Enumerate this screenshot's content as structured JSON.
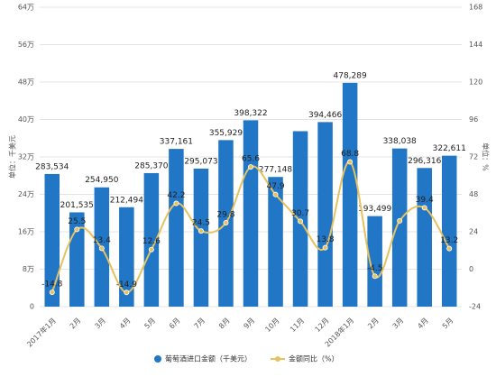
{
  "chart_data": {
    "type": "bar-line",
    "categories": [
      "2017年1月",
      "2月",
      "3月",
      "4月",
      "5月",
      "6月",
      "7月",
      "8月",
      "9月",
      "10月",
      "11月",
      "12月",
      "2018年1月",
      "2月",
      "3月",
      "4月",
      "5月"
    ],
    "series": [
      {
        "name": "葡萄酒进口金额（千美元）",
        "type": "bar",
        "color": "#2176c5",
        "values": [
          283534,
          201535,
          254950,
          212494,
          285370,
          337161,
          295073,
          355929,
          398322,
          277148,
          375000,
          394466,
          478289,
          193499,
          338038,
          296316,
          322611
        ],
        "value_labels": [
          "283,534",
          "201,535",
          "254,950",
          "212,494",
          "285,370",
          "337,161",
          "295,073",
          "355,929",
          "398,322",
          "277,148",
          null,
          "394,466",
          "478,289",
          "193,499",
          "338,038",
          "296,316",
          "322,611"
        ]
      },
      {
        "name": "金额同比（%）",
        "type": "line",
        "axis": "y2",
        "color": "#e6c15f",
        "values": [
          -14.8,
          25.5,
          13.4,
          -14.9,
          12.6,
          42.2,
          24.5,
          29.8,
          65.6,
          47.9,
          30.7,
          13.8,
          68.8,
          -4.5,
          31,
          39.4,
          13.2
        ],
        "value_labels": [
          "-14.8",
          "25.5",
          "13.4",
          "-14.9",
          "12.6",
          "42.2",
          "24.5",
          "29.8",
          "65.6",
          "47.9",
          "30.7",
          "13.8",
          "68.8",
          "-4.5",
          null,
          "39.4",
          "13.2"
        ]
      }
    ],
    "y_label": "单位：千美元",
    "y2_label": "单位：%",
    "ylim": [
      0,
      640000
    ],
    "yticks": [
      0,
      {
        "value": 80000,
        "label": "8万"
      },
      {
        "value": 160000,
        "label": "16万"
      },
      {
        "value": 240000,
        "label": "24万"
      },
      {
        "value": 320000,
        "label": "32万"
      },
      {
        "value": 400000,
        "label": "40万"
      },
      {
        "value": 480000,
        "label": "48万"
      },
      {
        "value": 560000,
        "label": "56万"
      },
      {
        "value": 640000,
        "label": "64万"
      }
    ],
    "y2lim": [
      -24,
      168
    ],
    "y2ticks": [
      -24,
      0,
      24,
      48,
      72,
      96,
      120,
      144,
      168
    ],
    "grid": true,
    "legend": "bottom"
  }
}
